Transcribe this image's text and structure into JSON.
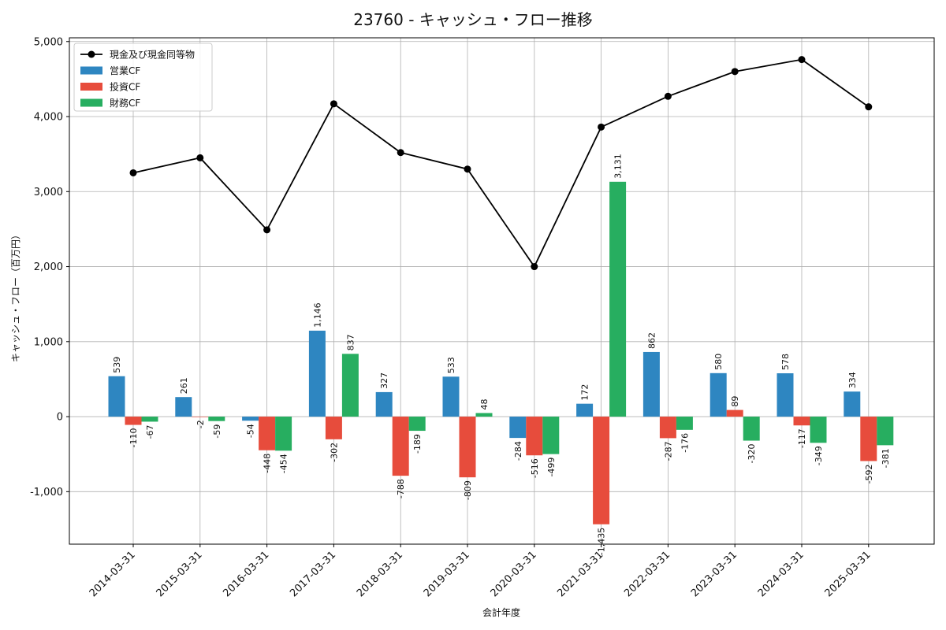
{
  "chart_data": {
    "type": "bar",
    "title": "23760 - キャッシュ・フロー推移",
    "xlabel": "会計年度",
    "ylabel": "キャッシュ・フロー（百万円）",
    "ylim": [
      -1700,
      5050
    ],
    "yticks": [
      -1000,
      0,
      1000,
      2000,
      3000,
      4000,
      5000
    ],
    "ytick_labels": [
      "-1,000",
      "0",
      "1,000",
      "2,000",
      "3,000",
      "4,000",
      "5,000"
    ],
    "grid": true,
    "legend_position": "top-left",
    "categories": [
      "2014-03-31",
      "2015-03-31",
      "2016-03-31",
      "2017-03-31",
      "2018-03-31",
      "2019-03-31",
      "2020-03-31",
      "2021-03-31",
      "2022-03-31",
      "2023-03-31",
      "2024-03-31",
      "2025-03-31"
    ],
    "series": [
      {
        "name": "営業CF",
        "kind": "bar",
        "color": "#2e86c1",
        "values": [
          539,
          261,
          -54,
          1146,
          327,
          533,
          -284,
          172,
          862,
          580,
          578,
          334
        ],
        "labels": [
          "539",
          "261",
          "-54",
          "1,146",
          "327",
          "533",
          "-284",
          "172",
          "862",
          "580",
          "578",
          "334"
        ]
      },
      {
        "name": "投資CF",
        "kind": "bar",
        "color": "#e74c3c",
        "values": [
          -110,
          -2,
          -448,
          -302,
          -788,
          -809,
          -516,
          -1435,
          -287,
          89,
          -117,
          -592
        ],
        "labels": [
          "-110",
          "-2",
          "-448",
          "-302",
          "-788",
          "-809",
          "-516",
          "-1,435",
          "-287",
          "89",
          "-117",
          "-592"
        ]
      },
      {
        "name": "財務CF",
        "kind": "bar",
        "color": "#27ae60",
        "values": [
          -67,
          -59,
          -454,
          837,
          -189,
          48,
          -499,
          3131,
          -176,
          -320,
          -349,
          -381
        ],
        "labels": [
          "-67",
          "-59",
          "-454",
          "837",
          "-189",
          "48",
          "-499",
          "3,131",
          "-176",
          "-320",
          "-349",
          "-381"
        ]
      },
      {
        "name": "現金及び現金同等物",
        "kind": "line",
        "color": "#000000",
        "values": [
          3250,
          3450,
          2490,
          4170,
          3520,
          3300,
          2000,
          3860,
          4270,
          4600,
          4760,
          4130
        ]
      }
    ]
  }
}
